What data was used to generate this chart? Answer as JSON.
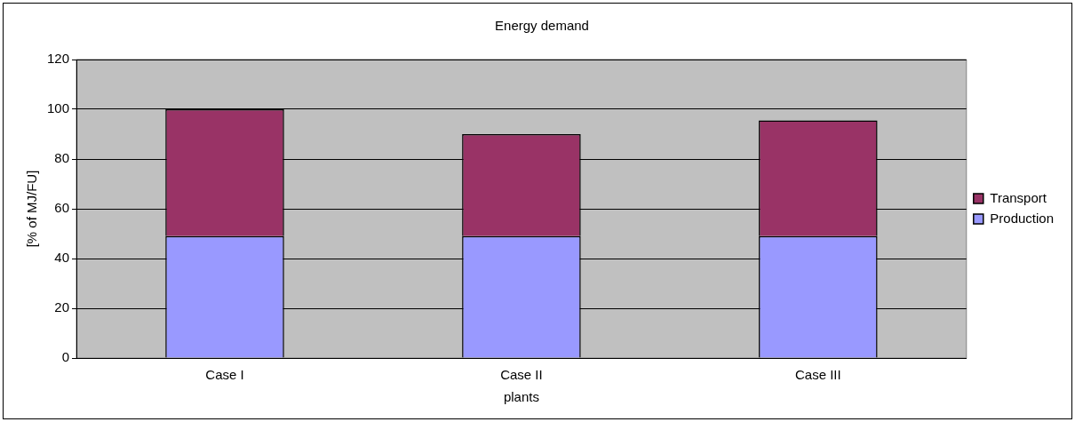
{
  "chart_data": {
    "type": "bar",
    "title": "Energy demand",
    "xlabel": "plants",
    "ylabel": "[% of MJ/FU]",
    "categories": [
      "Case I",
      "Case II",
      "Case III"
    ],
    "series": [
      {
        "name": "Production",
        "color": "#9999ff",
        "values": [
          49,
          49,
          49
        ]
      },
      {
        "name": "Transport",
        "color": "#993366",
        "values": [
          51,
          41,
          46.5
        ]
      }
    ],
    "stacked": true,
    "ylim": [
      0,
      120
    ],
    "yticks": [
      0,
      20,
      40,
      60,
      80,
      100,
      120
    ],
    "grid": "y",
    "legend": "right"
  }
}
